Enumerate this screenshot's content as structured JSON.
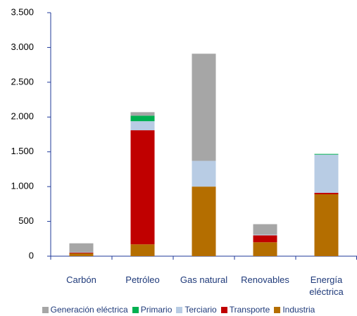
{
  "chart_data": {
    "type": "stacked_bar",
    "categories": [
      "Carbón",
      "Petróleo",
      "Gas natural",
      "Renovables",
      "Energía eléctrica"
    ],
    "series": [
      {
        "name": "Generación eléctrica",
        "color": "#a6a6a6",
        "values": [
          130,
          50,
          1540,
          150,
          0
        ]
      },
      {
        "name": "Primario",
        "color": "#00b050",
        "values": [
          0,
          80,
          0,
          0,
          10
        ]
      },
      {
        "name": "Terciario",
        "color": "#b8cce4",
        "values": [
          5,
          130,
          370,
          10,
          550
        ]
      },
      {
        "name": "Transporte",
        "color": "#c00000",
        "values": [
          10,
          1640,
          0,
          100,
          20
        ]
      },
      {
        "name": "Industria",
        "color": "#b46e00",
        "values": [
          40,
          170,
          1000,
          200,
          890
        ]
      }
    ],
    "ylim": [
      0,
      3500
    ],
    "yticks": [
      0,
      500,
      {
        "value": 1000,
        "label": "1.000"
      },
      {
        "value": 1500,
        "label": "1.500"
      },
      {
        "value": 2000,
        "label": "2.000"
      },
      {
        "value": 2500,
        "label": "2.500"
      },
      {
        "value": 3000,
        "label": "3.000"
      },
      {
        "value": 3500,
        "label": "3.500"
      }
    ]
  }
}
